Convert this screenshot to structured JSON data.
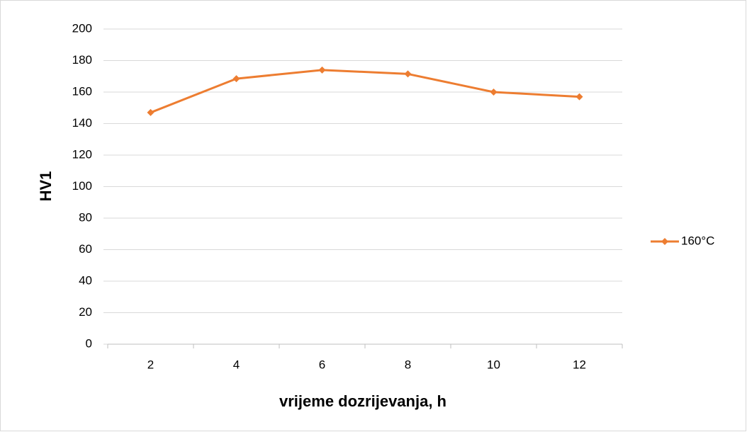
{
  "chart_data": {
    "type": "line",
    "x_label": "vrijeme dozrijevanja, h",
    "y_label": "HV1",
    "categories": [
      "2",
      "4",
      "6",
      "8",
      "10",
      "12"
    ],
    "series": [
      {
        "name": "160°C",
        "color": "#ED7D31",
        "values": [
          147,
          168.5,
          174,
          171.5,
          160,
          157
        ]
      }
    ],
    "ylim": [
      0,
      200
    ],
    "yticks": [
      0,
      20,
      40,
      60,
      80,
      100,
      120,
      140,
      160,
      180,
      200
    ],
    "grid": true,
    "legend": "right"
  }
}
